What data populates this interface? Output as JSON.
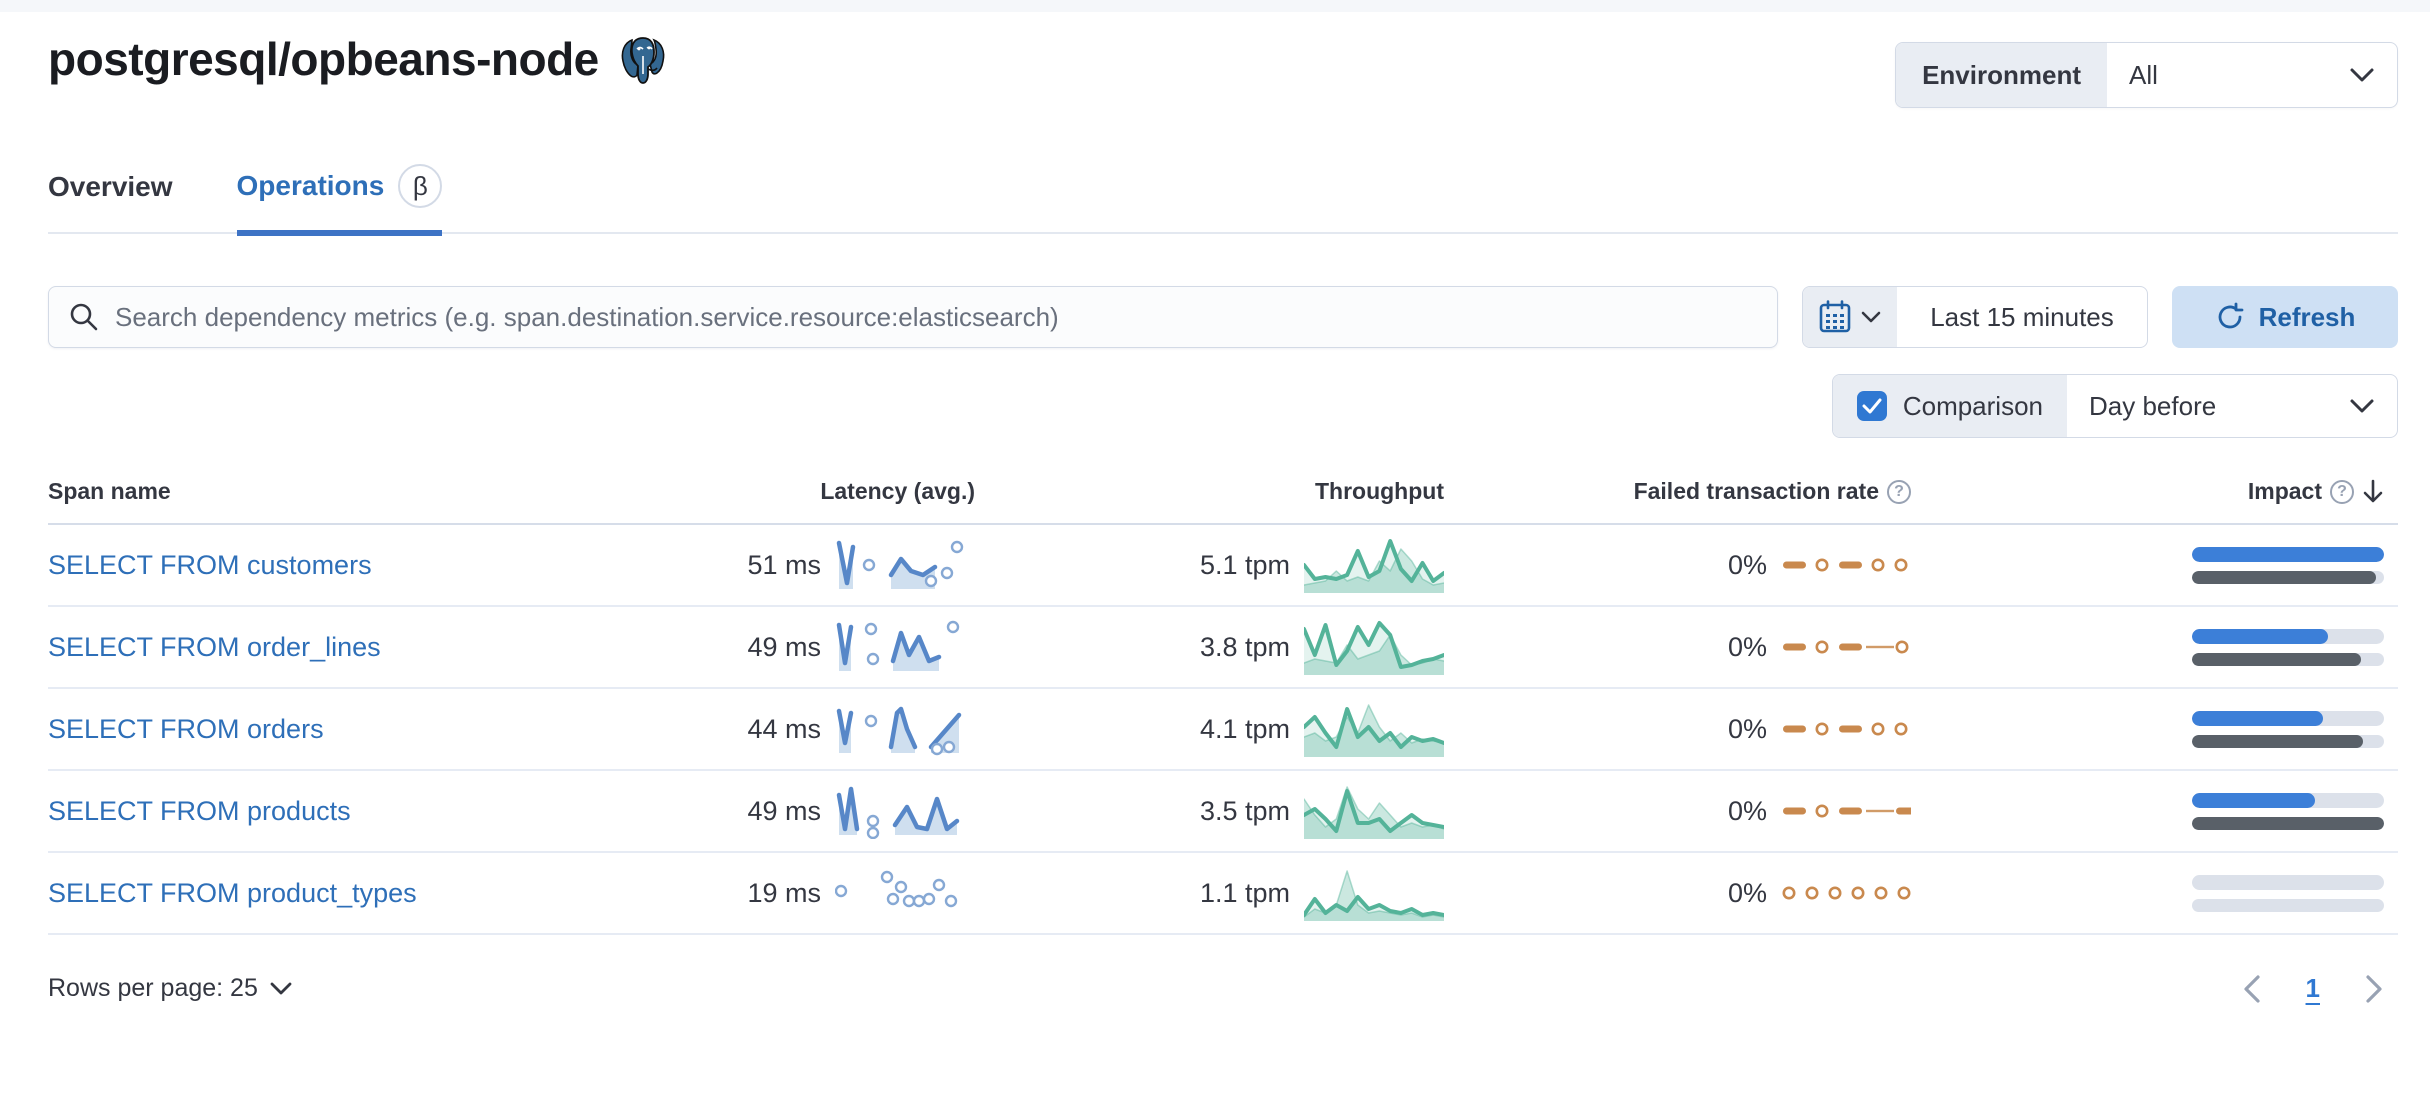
{
  "page": {
    "title": "postgresql/opbeans-node",
    "logo": "postgresql-elephant"
  },
  "header": {
    "environment_label": "Environment",
    "environment_value": "All"
  },
  "tabs": [
    {
      "label": "Overview",
      "active": false
    },
    {
      "label": "Operations",
      "active": true,
      "beta": "β"
    }
  ],
  "search": {
    "placeholder": "Search dependency metrics (e.g. span.destination.service.resource:elasticsearch)"
  },
  "time": {
    "range": "Last 15 minutes",
    "refresh_label": "Refresh"
  },
  "comparison": {
    "label": "Comparison",
    "value": "Day before",
    "checked": true
  },
  "table": {
    "columns": {
      "span": "Span name",
      "latency": "Latency (avg.)",
      "throughput": "Throughput",
      "failed": "Failed transaction rate",
      "impact": "Impact"
    },
    "rows": [
      {
        "name": "SELECT FROM customers",
        "latency": "51 ms",
        "throughput": "5.1 tpm",
        "failed_rate": "0%",
        "latency_spark": {
          "lines": [
            [
              [
                4,
                6
              ],
              [
                12,
                46
              ],
              [
                18,
                10
              ]
            ],
            [
              [
                56,
                38
              ],
              [
                66,
                22
              ],
              [
                76,
                34
              ],
              [
                88,
                38
              ],
              [
                100,
                30
              ]
            ]
          ],
          "dots": [
            [
              34,
              28
            ],
            [
              96,
              44
            ],
            [
              112,
              36
            ],
            [
              122,
              10
            ]
          ]
        },
        "throughput_spark": {
          "current": [
            30,
            44,
            42,
            44,
            40,
            16,
            42,
            36,
            6,
            34,
            46,
            28,
            46,
            38
          ],
          "previous": [
            50,
            48,
            46,
            36,
            46,
            42,
            46,
            26,
            36,
            14,
            26,
            44,
            50,
            48
          ]
        },
        "failed_spark": [
          "dash",
          "dot",
          "dash",
          "dot",
          "dot"
        ],
        "impact": {
          "current": 100,
          "previous": 96
        }
      },
      {
        "name": "SELECT FROM order_lines",
        "latency": "49 ms",
        "throughput": "3.8 tpm",
        "failed_rate": "0%",
        "latency_spark": {
          "lines": [
            [
              [
                4,
                6
              ],
              [
                10,
                44
              ],
              [
                16,
                8
              ]
            ],
            [
              [
                58,
                42
              ],
              [
                66,
                14
              ],
              [
                74,
                36
              ],
              [
                84,
                18
              ],
              [
                94,
                42
              ],
              [
                104,
                38
              ]
            ]
          ],
          "dots": [
            [
              36,
              10
            ],
            [
              38,
              40
            ],
            [
              118,
              8
            ]
          ]
        },
        "throughput_spark": {
          "current": [
            12,
            38,
            8,
            48,
            34,
            10,
            28,
            6,
            18,
            50,
            48,
            44,
            42,
            38
          ],
          "previous": [
            46,
            42,
            44,
            46,
            28,
            42,
            38,
            34,
            18,
            38,
            48,
            46,
            42,
            44
          ]
        },
        "failed_spark": [
          "dash",
          "dot",
          "dash",
          "thin",
          "dot"
        ],
        "impact": {
          "current": 71,
          "previous": 88
        }
      },
      {
        "name": "SELECT FROM orders",
        "latency": "44 ms",
        "throughput": "4.1 tpm",
        "failed_rate": "0%",
        "latency_spark": {
          "lines": [
            [
              [
                4,
                10
              ],
              [
                10,
                42
              ],
              [
                16,
                12
              ]
            ],
            [
              [
                56,
                46
              ],
              [
                62,
                12
              ],
              [
                66,
                8
              ],
              [
                72,
                28
              ],
              [
                80,
                46
              ]
            ],
            [
              [
                96,
                46
              ],
              [
                124,
                14
              ]
            ]
          ],
          "dots": [
            [
              36,
              20
            ],
            [
              102,
              48
            ],
            [
              114,
              46
            ]
          ]
        },
        "throughput_spark": {
          "current": [
            28,
            18,
            34,
            48,
            10,
            38,
            28,
            42,
            34,
            48,
            38,
            42,
            40,
            44
          ],
          "previous": [
            38,
            34,
            42,
            38,
            18,
            34,
            6,
            28,
            42,
            34,
            44,
            40,
            42,
            44
          ]
        },
        "failed_spark": [
          "dash",
          "dot",
          "dash",
          "dot",
          "dot"
        ],
        "impact": {
          "current": 68,
          "previous": 89
        }
      },
      {
        "name": "SELECT FROM products",
        "latency": "49 ms",
        "throughput": "3.5 tpm",
        "failed_rate": "0%",
        "latency_spark": {
          "lines": [
            [
              [
                4,
                12
              ],
              [
                10,
                46
              ],
              [
                16,
                6
              ],
              [
                22,
                46
              ]
            ],
            [
              [
                60,
                42
              ],
              [
                72,
                24
              ],
              [
                82,
                44
              ],
              [
                92,
                46
              ],
              [
                102,
                16
              ],
              [
                112,
                46
              ],
              [
                122,
                38
              ]
            ]
          ],
          "dots": [
            [
              38,
              38
            ],
            [
              38,
              50
            ]
          ]
        },
        "throughput_spark": {
          "current": [
            34,
            28,
            38,
            50,
            10,
            42,
            42,
            38,
            50,
            42,
            34,
            42,
            44,
            46
          ],
          "previous": [
            18,
            34,
            46,
            38,
            6,
            28,
            38,
            22,
            34,
            46,
            42,
            46,
            44,
            48
          ]
        },
        "failed_spark": [
          "dash",
          "dot",
          "dash",
          "thin",
          "dash"
        ],
        "impact": {
          "current": 64,
          "previous": 100
        }
      },
      {
        "name": "SELECT FROM product_types",
        "latency": "19 ms",
        "throughput": "1.1 tpm",
        "failed_rate": "0%",
        "latency_spark": {
          "lines": [],
          "dots": [
            [
              6,
              26
            ],
            [
              52,
              12
            ],
            [
              58,
              34
            ],
            [
              66,
              22
            ],
            [
              74,
              36
            ],
            [
              84,
              36
            ],
            [
              94,
              34
            ],
            [
              104,
              20
            ],
            [
              116,
              36
            ]
          ]
        },
        "throughput_spark": {
          "current": [
            52,
            36,
            50,
            42,
            48,
            34,
            46,
            42,
            48,
            50,
            46,
            52,
            50,
            52
          ],
          "previous": [
            54,
            46,
            50,
            42,
            8,
            42,
            50,
            48,
            50,
            52,
            50,
            54,
            52,
            54
          ]
        },
        "failed_spark": [
          "dot",
          "dot",
          "dot",
          "dot",
          "dot",
          "dot",
          "dot"
        ],
        "impact": {
          "current": 0,
          "previous": 0
        }
      }
    ]
  },
  "footer": {
    "rows_per_page": "Rows per page: 25",
    "page": "1"
  },
  "colors": {
    "link": "#2e6fb8",
    "latency_line": "#5787c8",
    "latency_fill": "#cfdfef",
    "latency_dot": "#86a8d4",
    "throughput_line": "#54b399",
    "throughput_fill_current": "rgba(84,179,153,0.16)",
    "throughput_fill_previous": "rgba(84,179,153,0.30)",
    "throughput_prev_line": "rgba(84,179,153,0.45)",
    "failed": "#c9894e",
    "impact_current": "#3c7fd8",
    "impact_previous": "#596068",
    "impact_track": "#dce1ea"
  }
}
